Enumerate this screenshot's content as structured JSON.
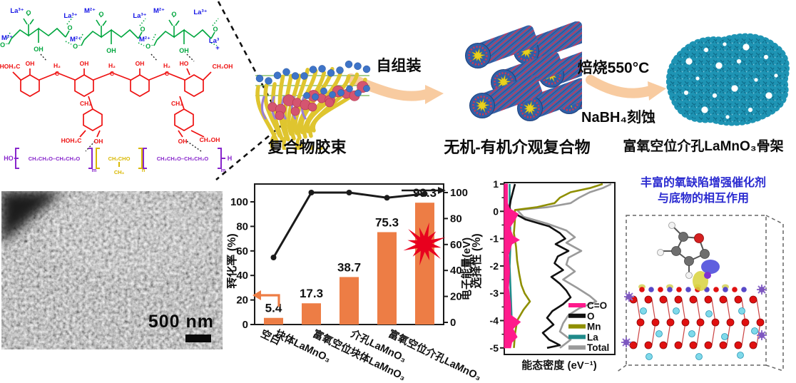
{
  "figure": {
    "chem": {
      "la": "La³⁺",
      "la_wrap": "La³",
      "plus": "+",
      "m": "M²⁺",
      "o": "O",
      "oneg": "O⁻",
      "oh": "OH",
      "ho": "HO",
      "hoh2c": "HOH₂C",
      "ch2oh": "CH₂OH",
      "h2": "H₂",
      "c": "C",
      "ch2": "CH₂",
      "peo": "CH₂CH₂O–CH₂CH₂O",
      "ppo": "CH₂CHO",
      "ch3": "CH₃",
      "sub_m": "m",
      "sub_n": "n",
      "h_end": "H"
    },
    "labels": {
      "micelle": "复合物胶束",
      "assembly": "自组装",
      "composite": "无机-有机介观复合物",
      "calcine": "焙烧550°C",
      "etch": "NaBH₄刻蚀",
      "framework": "富氧空位介孔LaMnO₃骨架"
    },
    "sem": {
      "scale": "500 nm"
    },
    "dft": {
      "line1": "丰富的氧缺陷增强催化剂",
      "line2": "与底物的相互作用"
    }
  },
  "chart_data": [
    {
      "type": "bar",
      "categories": [
        "空白",
        "块体LaMnO₃",
        "富氧空位块体LaMnO₃",
        "介孔LaMnO₃",
        "富氧空位介孔LaMnO₃"
      ],
      "series": [
        {
          "name": "转化率",
          "type": "bar",
          "axis": "left",
          "color": "#ED7D45",
          "values": [
            5.4,
            17.3,
            38.7,
            75.3,
            99.3
          ]
        },
        {
          "name": "选择性",
          "type": "line",
          "axis": "right",
          "color": "#1a1a1a",
          "values": [
            50,
            100,
            100,
            96,
            99
          ]
        }
      ],
      "bar_value_labels": [
        "5.4",
        "17.3",
        "38.7",
        "75.3",
        "99.3"
      ],
      "ylabel_left": "转化率 (%)",
      "ylabel_right": "选择性 (%)",
      "yticks": [
        0,
        20,
        40,
        60,
        80,
        100
      ],
      "ylim": [
        0,
        105
      ],
      "grid": false,
      "annotations": {
        "star_color": "#E8001E",
        "left_axis_arrow_color": "#ED7D45",
        "right_axis_arrow_color": "#1a1a1a"
      }
    },
    {
      "type": "line",
      "orientation": "vertical-dos",
      "xlabel": "能态密度 (eV⁻¹)",
      "ylabel": "电子能量(eV)",
      "yticks": [
        1,
        0,
        -1,
        -2,
        -3,
        -4,
        -5
      ],
      "ylim": [
        1,
        -5
      ],
      "grid": false,
      "legend_position": "inside-bottom-right",
      "series": [
        {
          "name": "Total",
          "color": "#9A9A9A",
          "points": [
            [
              1,
              1.0
            ],
            [
              0.85,
              0.92
            ],
            [
              0.7,
              0.8
            ],
            [
              0.5,
              0.7
            ],
            [
              0.3,
              0.62
            ],
            [
              0.15,
              0.4
            ],
            [
              0.05,
              0.12
            ],
            [
              -0.2,
              0.18
            ],
            [
              -0.45,
              0.4
            ],
            [
              -0.7,
              0.58
            ],
            [
              -0.95,
              0.66
            ],
            [
              -1.15,
              0.58
            ],
            [
              -1.45,
              0.72
            ],
            [
              -1.7,
              0.6
            ],
            [
              -1.95,
              0.58
            ],
            [
              -2.2,
              0.66
            ],
            [
              -2.5,
              0.55
            ],
            [
              -2.8,
              0.68
            ],
            [
              -3.1,
              0.8
            ],
            [
              -3.3,
              0.86
            ],
            [
              -3.55,
              0.7
            ],
            [
              -3.8,
              0.6
            ],
            [
              -4.1,
              0.55
            ],
            [
              -4.4,
              0.52
            ],
            [
              -4.7,
              0.62
            ],
            [
              -5,
              0.52
            ]
          ]
        },
        {
          "name": "Mn",
          "color": "#8F8F00",
          "points": [
            [
              1,
              0.92
            ],
            [
              0.85,
              0.8
            ],
            [
              0.7,
              0.62
            ],
            [
              0.5,
              0.52
            ],
            [
              0.3,
              0.47
            ],
            [
              0.15,
              0.3
            ],
            [
              0.05,
              0.1
            ],
            [
              -0.3,
              0.1
            ],
            [
              -0.8,
              0.09
            ],
            [
              -1.3,
              0.11
            ],
            [
              -1.8,
              0.12
            ],
            [
              -2.3,
              0.14
            ],
            [
              -2.7,
              0.16
            ],
            [
              -3.0,
              0.19
            ],
            [
              -3.3,
              0.24
            ],
            [
              -3.6,
              0.18
            ],
            [
              -4.0,
              0.12
            ],
            [
              -4.5,
              0.1
            ],
            [
              -5,
              0.09
            ]
          ]
        },
        {
          "name": "La",
          "color": "#1F8A8A",
          "points": [
            [
              1,
              0.05
            ],
            [
              0,
              0.05
            ],
            [
              -1,
              0.06
            ],
            [
              -2,
              0.05
            ],
            [
              -3,
              0.06
            ],
            [
              -4,
              0.07
            ],
            [
              -4.5,
              0.05
            ],
            [
              -5,
              0.05
            ]
          ]
        },
        {
          "name": "O",
          "color": "#111111",
          "points": [
            [
              1,
              0.1
            ],
            [
              0.7,
              0.08
            ],
            [
              0.4,
              0.06
            ],
            [
              0.15,
              0.05
            ],
            [
              0,
              0.06
            ],
            [
              -0.3,
              0.2
            ],
            [
              -0.55,
              0.42
            ],
            [
              -0.8,
              0.52
            ],
            [
              -1.0,
              0.57
            ],
            [
              -1.2,
              0.48
            ],
            [
              -1.45,
              0.6
            ],
            [
              -1.65,
              0.5
            ],
            [
              -1.9,
              0.47
            ],
            [
              -2.15,
              0.55
            ],
            [
              -2.4,
              0.44
            ],
            [
              -2.65,
              0.52
            ],
            [
              -2.9,
              0.58
            ],
            [
              -3.15,
              0.62
            ],
            [
              -3.4,
              0.55
            ],
            [
              -3.65,
              0.45
            ],
            [
              -3.9,
              0.4
            ],
            [
              -4.15,
              0.46
            ],
            [
              -4.45,
              0.36
            ],
            [
              -4.7,
              0.42
            ],
            [
              -4.9,
              0.52
            ],
            [
              -5,
              0.4
            ]
          ]
        },
        {
          "name": "C=O",
          "color": "#FF1A8C",
          "fill": true,
          "points": [
            [
              1,
              0.03
            ],
            [
              0.3,
              0.03
            ],
            [
              0.1,
              0.05
            ],
            [
              -0.1,
              0.13
            ],
            [
              -0.3,
              0.1
            ],
            [
              -0.6,
              0.05
            ],
            [
              -0.9,
              0.08
            ],
            [
              -1.05,
              0.14
            ],
            [
              -1.2,
              0.07
            ],
            [
              -1.6,
              0.04
            ],
            [
              -2.2,
              0.05
            ],
            [
              -2.8,
              0.04
            ],
            [
              -3.4,
              0.06
            ],
            [
              -3.8,
              0.06
            ],
            [
              -4.05,
              0.15
            ],
            [
              -4.3,
              0.08
            ],
            [
              -4.6,
              0.12
            ],
            [
              -4.8,
              0.07
            ],
            [
              -5,
              0.06
            ]
          ]
        }
      ],
      "legend": [
        "C=O",
        "O",
        "Mn",
        "La",
        "Total"
      ]
    }
  ]
}
